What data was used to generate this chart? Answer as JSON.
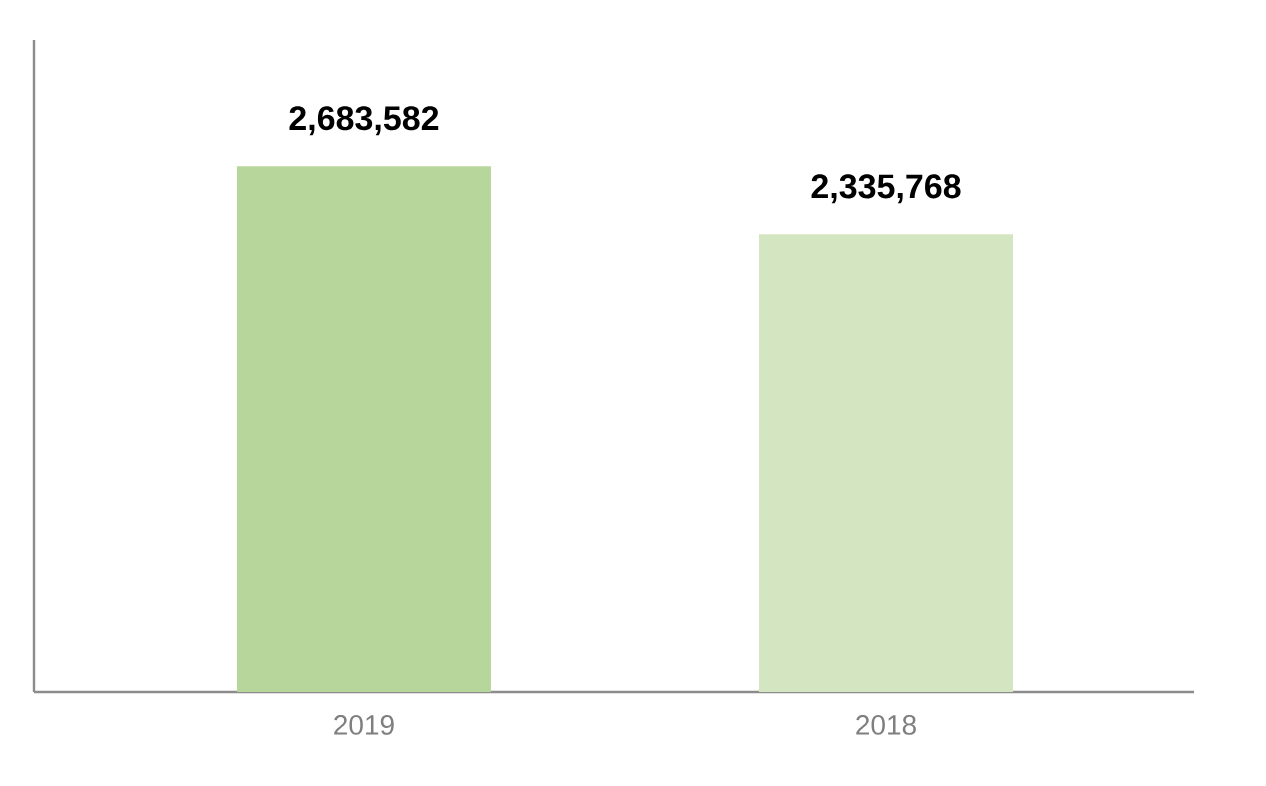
{
  "chart_data": {
    "type": "bar",
    "categories": [
      "2019",
      "2018"
    ],
    "values": [
      2683582,
      2335768
    ],
    "colors": [
      "#b6d69c",
      "#d4e6c1"
    ],
    "value_labels": [
      "2,683,582",
      "2,335,768"
    ]
  }
}
